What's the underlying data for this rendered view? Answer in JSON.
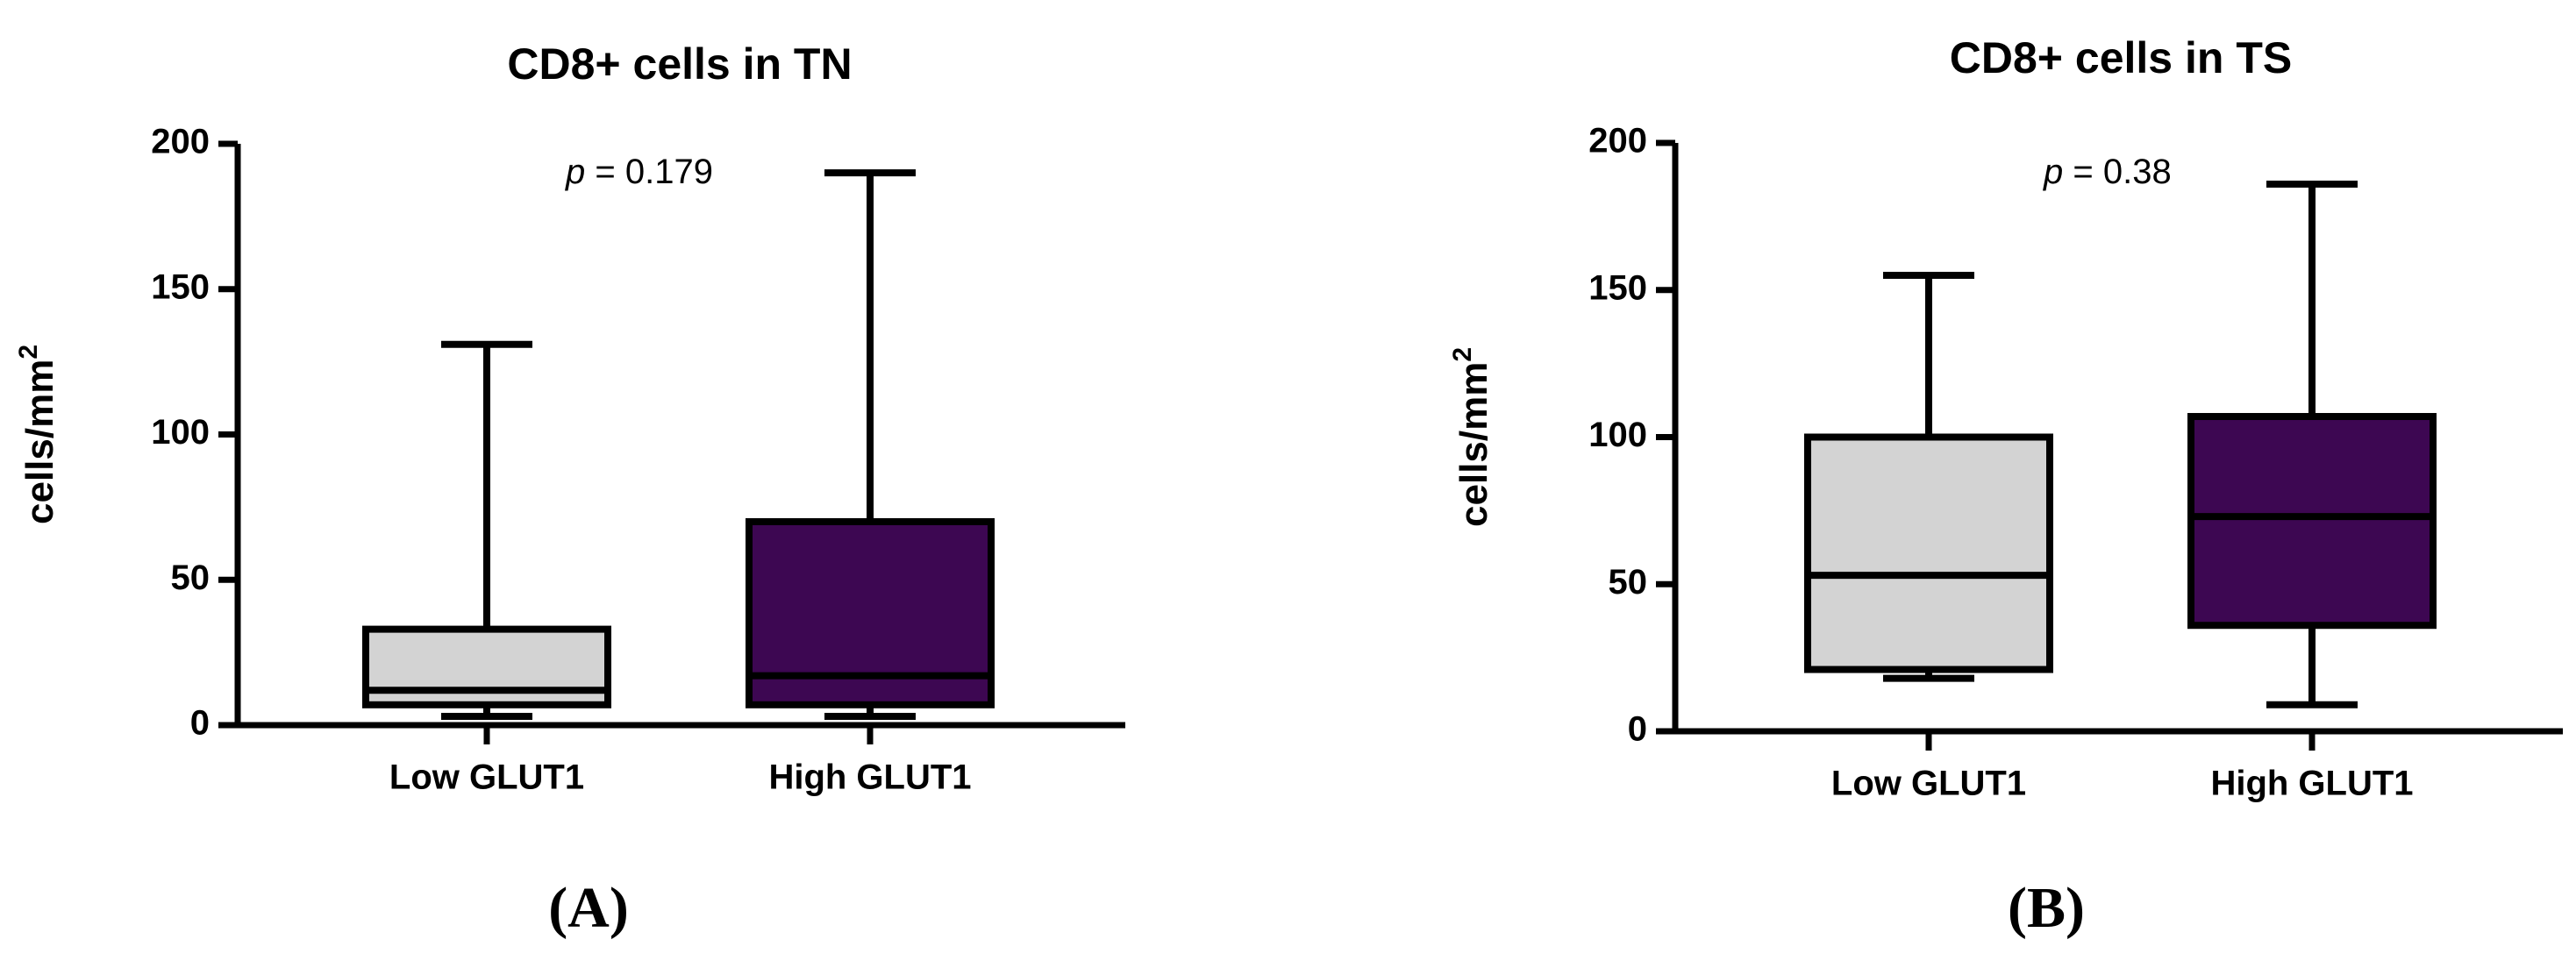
{
  "chart_data": [
    {
      "type": "box",
      "title": "CD8+ cells in TN",
      "ylabel": "cells/mm",
      "ylabel_superscript": "2",
      "ylim": [
        0,
        200
      ],
      "yticks": [
        0,
        50,
        100,
        150,
        200
      ],
      "categories": [
        "Low GLUT1",
        "High GLUT1"
      ],
      "boxes": [
        {
          "category": "Low GLUT1",
          "whisker_low": 3,
          "q1": 7,
          "median": 12,
          "q3": 33,
          "whisker_high": 131,
          "color": "#d3d3d3"
        },
        {
          "category": "High GLUT1",
          "whisker_low": 3,
          "q1": 7,
          "median": 17,
          "q3": 70,
          "whisker_high": 190,
          "color": "#3d0752"
        }
      ],
      "annotation": {
        "italic": "p",
        "text": " = 0.179"
      },
      "panel_label": "(A)"
    },
    {
      "type": "box",
      "title": "CD8+ cells in TS",
      "ylabel": "cells/mm",
      "ylabel_superscript": "2",
      "ylim": [
        0,
        200
      ],
      "yticks": [
        0,
        50,
        100,
        150,
        200
      ],
      "categories": [
        "Low GLUT1",
        "High GLUT1"
      ],
      "boxes": [
        {
          "category": "Low GLUT1",
          "whisker_low": 18,
          "q1": 21,
          "median": 53,
          "q3": 100,
          "whisker_high": 155,
          "color": "#d3d3d3"
        },
        {
          "category": "High GLUT1",
          "whisker_low": 9,
          "q1": 36,
          "median": 73,
          "q3": 107,
          "whisker_high": 186,
          "color": "#3d0752"
        }
      ],
      "annotation": {
        "italic": "p",
        "text": " = 0.38"
      },
      "panel_label": "(B)"
    }
  ]
}
